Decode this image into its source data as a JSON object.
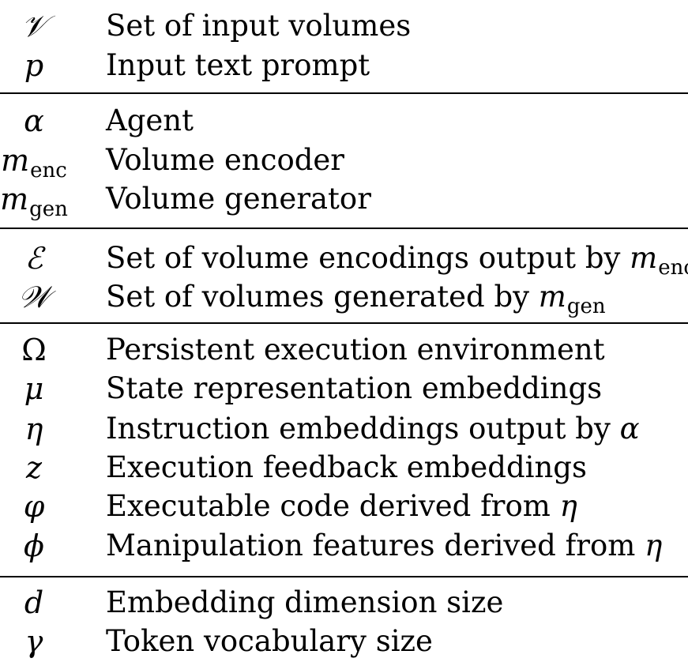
{
  "groups": [
    {
      "rows": [
        {
          "symbol": "𝒱",
          "description": "Set of input volumes"
        },
        {
          "symbol": "p",
          "description": "Input text prompt"
        }
      ]
    },
    {
      "rows": [
        {
          "symbol": "α",
          "description": "Agent"
        },
        {
          "symbol": "m",
          "symbol_sub": "enc",
          "description": "Volume encoder"
        },
        {
          "symbol": "m",
          "symbol_sub": "gen",
          "description": "Volume generator"
        }
      ]
    },
    {
      "rows": [
        {
          "symbol": "ℰ",
          "description": "Set of volume encodings output by ",
          "desc_math": "m",
          "desc_math_sub": "enc"
        },
        {
          "symbol": "𝒲",
          "description": "Set of volumes generated by ",
          "desc_math": "m",
          "desc_math_sub": "gen"
        }
      ]
    },
    {
      "rows": [
        {
          "symbol": "Ω",
          "description": "Persistent execution environment"
        },
        {
          "symbol": "μ",
          "description": "State representation embeddings"
        },
        {
          "symbol": "η",
          "description": "Instruction embeddings output by ",
          "desc_math": "α"
        },
        {
          "symbol": "z",
          "description": "Execution feedback embeddings"
        },
        {
          "symbol": "φ",
          "description": "Executable code derived from ",
          "desc_math": "η"
        },
        {
          "symbol": "ϕ",
          "description": "Manipulation features derived from ",
          "desc_math": "η"
        }
      ]
    },
    {
      "rows": [
        {
          "symbol": "d",
          "description": "Embedding dimension size"
        },
        {
          "symbol": "γ",
          "description": "Token vocabulary size"
        }
      ]
    }
  ]
}
